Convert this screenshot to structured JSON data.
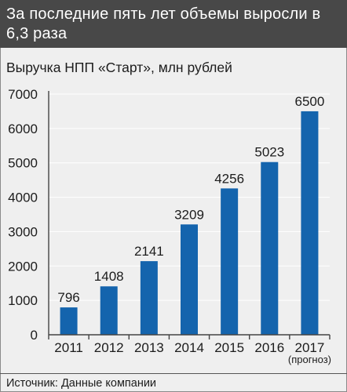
{
  "header": {
    "title": "За последние пять лет объемы выросли в 6,3 раза"
  },
  "chart_data": {
    "type": "bar",
    "title": "Выручка НПП «Старт», млн рублей",
    "categories": [
      "2011",
      "2012",
      "2013",
      "2014",
      "2015",
      "2016",
      "2017"
    ],
    "category_notes": [
      "",
      "",
      "",
      "",
      "",
      "",
      "(прогноз)"
    ],
    "values": [
      796,
      1408,
      2141,
      3209,
      4256,
      5023,
      6500
    ],
    "ylim": [
      0,
      7000
    ],
    "yticks": [
      0,
      1000,
      2000,
      3000,
      4000,
      5000,
      6000,
      7000
    ],
    "grid": true,
    "bar_color": "#1464ad",
    "xlabel": "",
    "ylabel": ""
  },
  "footer": {
    "source": "Источник: Данные компании"
  }
}
